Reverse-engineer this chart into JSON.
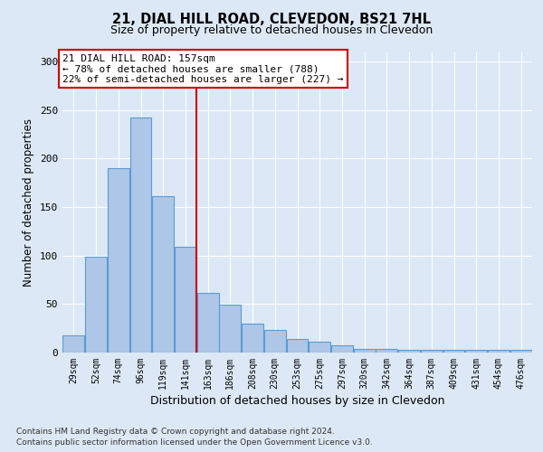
{
  "title1": "21, DIAL HILL ROAD, CLEVEDON, BS21 7HL",
  "title2": "Size of property relative to detached houses in Clevedon",
  "xlabel": "Distribution of detached houses by size in Clevedon",
  "ylabel": "Number of detached properties",
  "bar_labels": [
    "29sqm",
    "52sqm",
    "74sqm",
    "96sqm",
    "119sqm",
    "141sqm",
    "163sqm",
    "186sqm",
    "208sqm",
    "230sqm",
    "253sqm",
    "275sqm",
    "297sqm",
    "320sqm",
    "342sqm",
    "364sqm",
    "387sqm",
    "409sqm",
    "431sqm",
    "454sqm",
    "476sqm"
  ],
  "bar_heights": [
    18,
    99,
    190,
    242,
    161,
    109,
    62,
    49,
    30,
    23,
    14,
    11,
    7,
    4,
    4,
    3,
    3,
    3,
    3,
    3,
    3
  ],
  "bar_color": "#aec6e8",
  "bar_edge_color": "#5b9bd5",
  "vline_x_idx": 6,
  "vline_color": "#cc0000",
  "annotation_text": "21 DIAL HILL ROAD: 157sqm\n← 78% of detached houses are smaller (788)\n22% of semi-detached houses are larger (227) →",
  "annotation_box_color": "#ffffff",
  "annotation_box_edge": "#cc0000",
  "ylim": [
    0,
    310
  ],
  "yticks": [
    0,
    50,
    100,
    150,
    200,
    250,
    300
  ],
  "footer_line1": "Contains HM Land Registry data © Crown copyright and database right 2024.",
  "footer_line2": "Contains public sector information licensed under the Open Government Licence v3.0.",
  "fig_bg_color": "#dce8f5",
  "plot_bg_color": "#dce8f5"
}
